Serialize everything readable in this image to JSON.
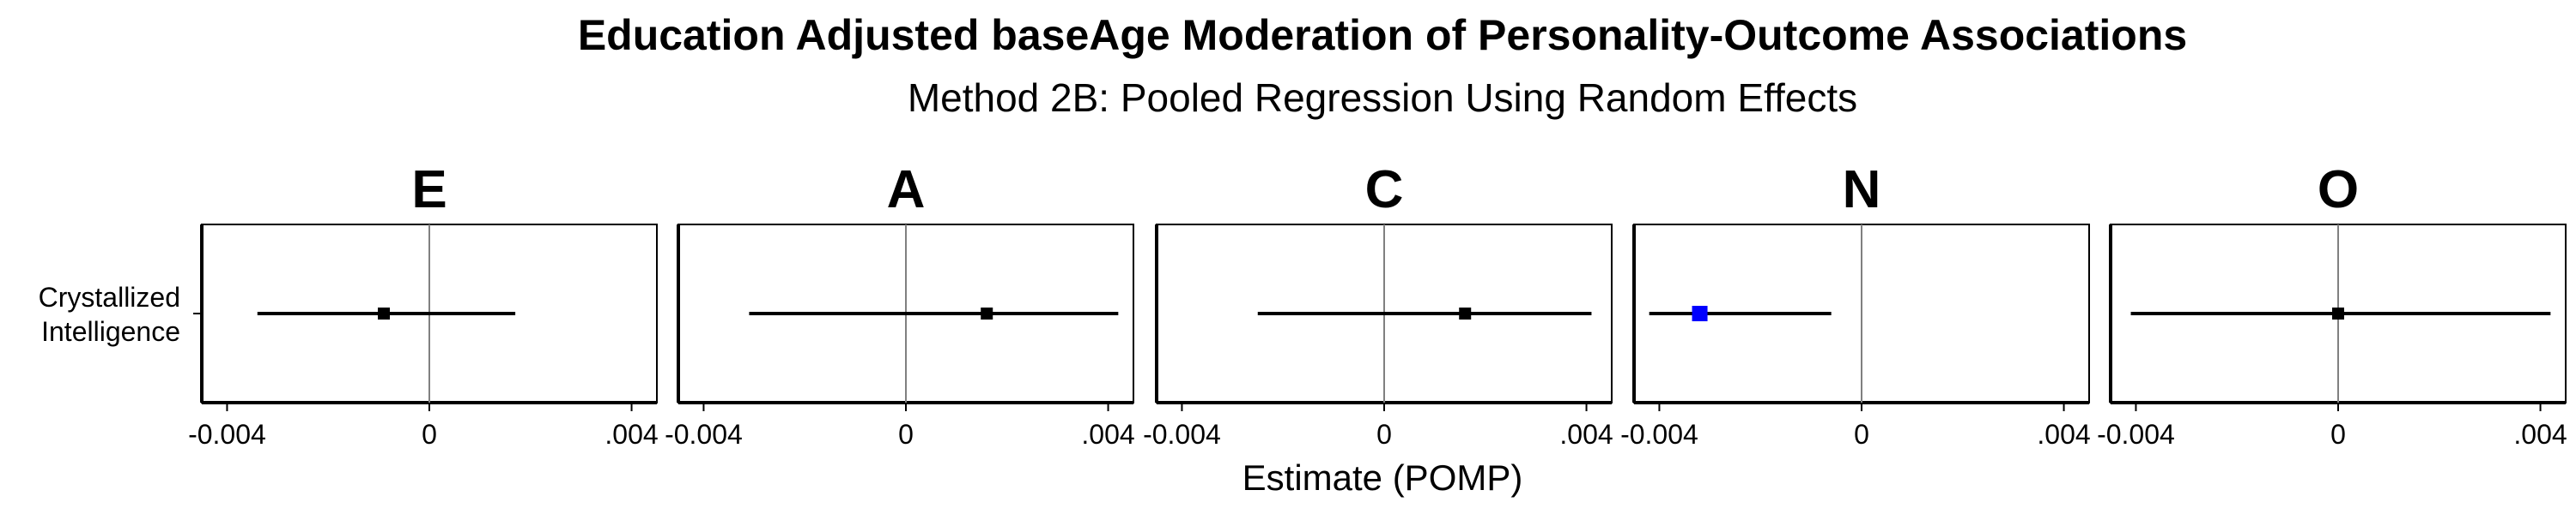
{
  "chart_data": {
    "type": "forest",
    "title": "Education Adjusted baseAge Moderation of Personality-Outcome Associations",
    "subtitle": "Method 2B: Pooled Regression Using Random Effects",
    "xlabel": "Estimate (POMP)",
    "ylabel": "",
    "xlim": [
      -0.0045,
      0.0045
    ],
    "x_ticks": [
      -0.004,
      0,
      0.004
    ],
    "x_tick_labels": [
      "-0.004",
      "0",
      ".004"
    ],
    "y_categories": [
      "Crystallized Intelligence"
    ],
    "y_category_lines": [
      "Crystallized",
      "Intelligence"
    ],
    "reference_line": 0,
    "grid": false,
    "facets": [
      {
        "label": "E",
        "estimate": -0.0009,
        "ci_low": -0.0034,
        "ci_high": 0.0017,
        "color": "#000000"
      },
      {
        "label": "A",
        "estimate": 0.0016,
        "ci_low": -0.0031,
        "ci_high": 0.0042,
        "color": "#000000"
      },
      {
        "label": "C",
        "estimate": 0.0016,
        "ci_low": -0.0025,
        "ci_high": 0.0041,
        "color": "#000000"
      },
      {
        "label": "N",
        "estimate": -0.0032,
        "ci_low": -0.0042,
        "ci_high": -0.0006,
        "color": "#0000ff"
      },
      {
        "label": "O",
        "estimate": 0.0,
        "ci_low": -0.0041,
        "ci_high": 0.0042,
        "color": "#000000"
      }
    ]
  }
}
